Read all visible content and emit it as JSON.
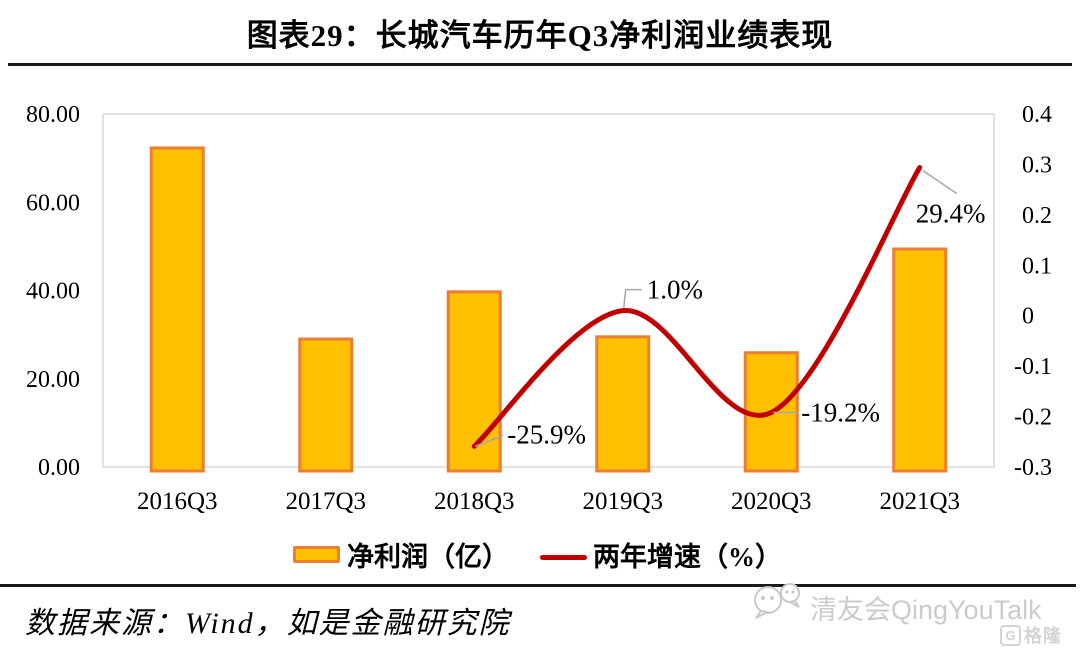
{
  "title": "图表29：长城汽车历年Q3净利润业绩表现",
  "chart_data": {
    "type": "bar",
    "combo": "bar+line",
    "title": "图表29：长城汽车历年Q3净利润业绩表现",
    "categories": [
      "2016Q3",
      "2017Q3",
      "2018Q3",
      "2019Q3",
      "2020Q3",
      "2021Q3"
    ],
    "series": [
      {
        "name": "净利润（亿）",
        "type": "bar",
        "axis": "left",
        "color": "#FFC000",
        "border_color": "#ED7D31",
        "values": [
          72.3,
          29.0,
          39.7,
          29.5,
          25.9,
          49.4
        ]
      },
      {
        "name": "两年增速（%）",
        "type": "line",
        "axis": "right",
        "color": "#C00000",
        "values": [
          null,
          null,
          -0.259,
          0.01,
          -0.192,
          0.294
        ]
      }
    ],
    "left_axis": {
      "min": 0,
      "max": 80,
      "ticks": [
        "80.00",
        "60.00",
        "40.00",
        "20.00",
        "0.00"
      ]
    },
    "right_axis": {
      "min": -0.3,
      "max": 0.4,
      "ticks": [
        "0.4",
        "0.3",
        "0.2",
        "0.1",
        "0",
        "-0.1",
        "-0.2",
        "-0.3"
      ]
    },
    "annotations": [
      {
        "label": "-25.9%",
        "category_index": 2
      },
      {
        "label": "1.0%",
        "category_index": 3
      },
      {
        "label": "-19.2%",
        "category_index": 4
      },
      {
        "label": "29.4%",
        "category_index": 5
      }
    ],
    "grid": false,
    "plot_border_color": "#D9D9D9",
    "leader_line_color": "#A6A6A6",
    "legend_position": "bottom"
  },
  "footer": {
    "source": "数据来源：Wind，如是金融研究院",
    "watermark_text": "清友会QingYouTalk",
    "logo_text": "格隆汇"
  }
}
